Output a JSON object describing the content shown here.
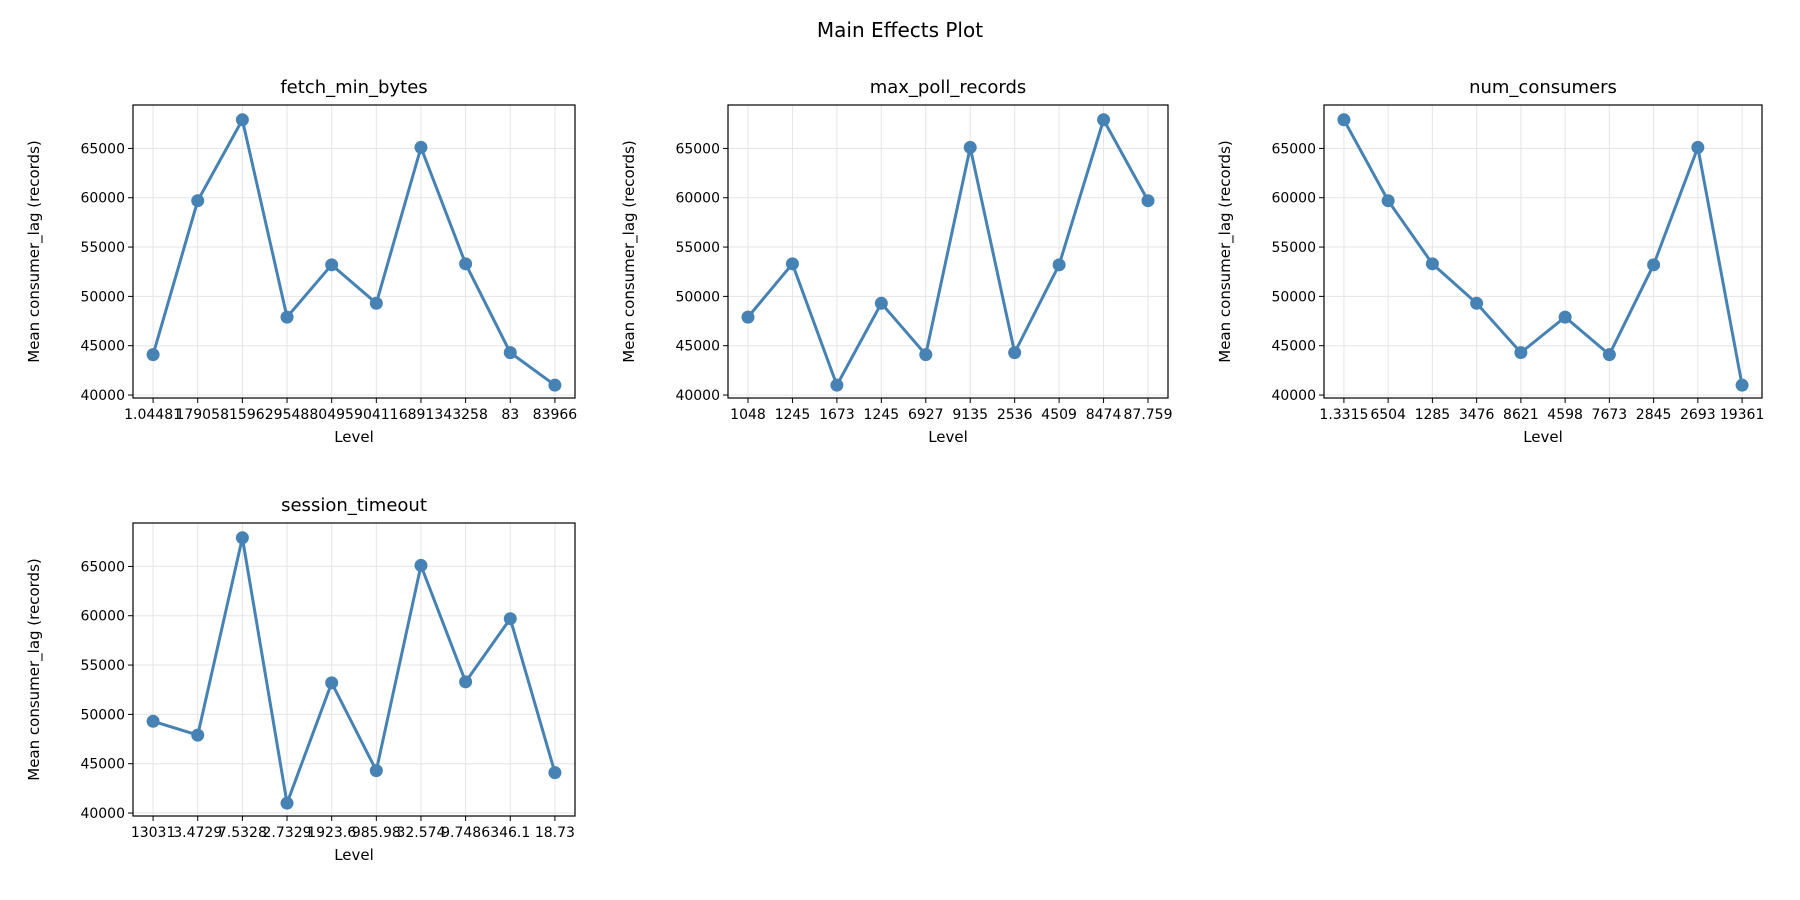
{
  "title": "Main Effects Plot",
  "colors": {
    "line": "#4682b4",
    "grid": "#e5e5e5",
    "axis": "#000000"
  },
  "chart_data": [
    {
      "type": "line",
      "title": "fetch_min_bytes",
      "xlabel": "Level",
      "ylabel": "Mean consumer_lag (records)",
      "categories": [
        "1.04481",
        "17905",
        "81596",
        "29548",
        "80495",
        "90411",
        "68913",
        "43258",
        "83",
        "83966"
      ],
      "values": [
        44100,
        59700,
        67900,
        47900,
        53200,
        49300,
        65100,
        53300,
        44300,
        41000
      ],
      "ylim": [
        39700,
        69400
      ],
      "yticks": [
        40000,
        45000,
        50000,
        55000,
        60000,
        65000
      ],
      "grid": true
    },
    {
      "type": "line",
      "title": "max_poll_records",
      "xlabel": "Level",
      "ylabel": "Mean consumer_lag (records)",
      "categories": [
        "1048",
        "1245",
        "1673",
        "1245",
        "6927",
        "9135",
        "2536",
        "4509",
        "8474",
        "87.759"
      ],
      "values": [
        47900,
        53300,
        41000,
        49300,
        44100,
        65100,
        44300,
        53200,
        67900,
        59700
      ],
      "ylim": [
        39700,
        69400
      ],
      "yticks": [
        40000,
        45000,
        50000,
        55000,
        60000,
        65000
      ],
      "grid": true
    },
    {
      "type": "line",
      "title": "num_consumers",
      "xlabel": "Level",
      "ylabel": "Mean consumer_lag (records)",
      "categories": [
        "1.3315",
        "6504",
        "1285",
        "3476",
        "8621",
        "4598",
        "7673",
        "2845",
        "2693",
        "19361"
      ],
      "values": [
        67900,
        59700,
        53300,
        49300,
        44300,
        47900,
        44100,
        53200,
        65100,
        41000
      ],
      "ylim": [
        39700,
        69400
      ],
      "yticks": [
        40000,
        45000,
        50000,
        55000,
        60000,
        65000
      ],
      "grid": true
    },
    {
      "type": "line",
      "title": "session_timeout",
      "xlabel": "Level",
      "ylabel": "Mean consumer_lag (records)",
      "categories": [
        "13031",
        "3.4729",
        "7.5328",
        "2.7329",
        "1923.6",
        "985.98",
        "32.574",
        "9.7486",
        "346.1",
        "18.73"
      ],
      "values": [
        49300,
        47900,
        67900,
        41000,
        53200,
        44300,
        65100,
        53300,
        59700,
        44100
      ],
      "ylim": [
        39700,
        69400
      ],
      "yticks": [
        40000,
        45000,
        50000,
        55000,
        60000,
        65000
      ],
      "grid": true
    }
  ]
}
